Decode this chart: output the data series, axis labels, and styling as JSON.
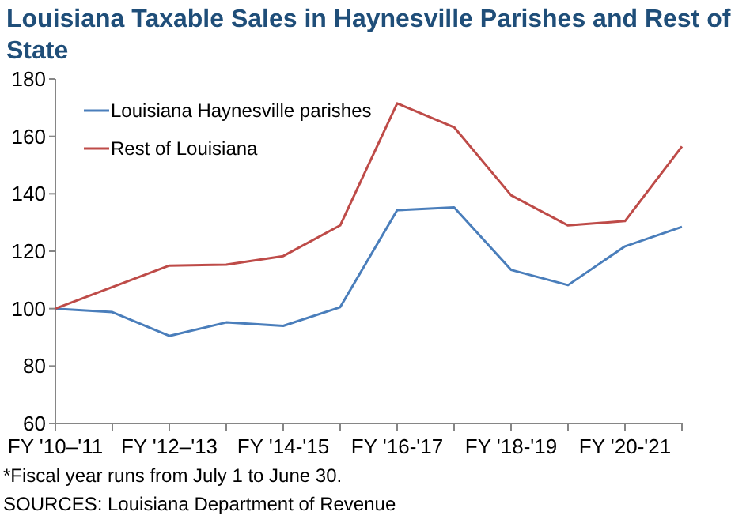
{
  "chart_data": {
    "type": "line",
    "title": "Louisiana Taxable Sales in Haynesville Parishes and Rest of State",
    "categories": [
      "FY '10–'11",
      null,
      "FY '12–'13",
      null,
      "FY '14-'15",
      null,
      "FY '16-'17",
      null,
      "FY '18-'19",
      null,
      "FY '20-'21",
      null
    ],
    "series": [
      {
        "name": "Louisiana Haynesville parishes",
        "color": "#4a7ebb",
        "values": [
          100,
          98.8,
          90.5,
          95.2,
          94,
          100.5,
          134.3,
          135.3,
          113.5,
          108.2,
          121.7,
          128.5
        ]
      },
      {
        "name": "Rest of Louisiana",
        "color": "#be4b48",
        "values": [
          100,
          107.5,
          115,
          115.3,
          118.3,
          129,
          171.5,
          163.2,
          139.5,
          129,
          130.5,
          156.5
        ]
      }
    ],
    "ylim": [
      60,
      180
    ],
    "yticks": [
      60,
      80,
      100,
      120,
      140,
      160,
      180
    ],
    "grid": false,
    "legend": "top left",
    "marker": "none",
    "line_style": "solid",
    "annotations": [
      "*Fiscal year runs from July 1 to June 30.",
      "SOURCES: Louisiana Department of Revenue"
    ]
  }
}
